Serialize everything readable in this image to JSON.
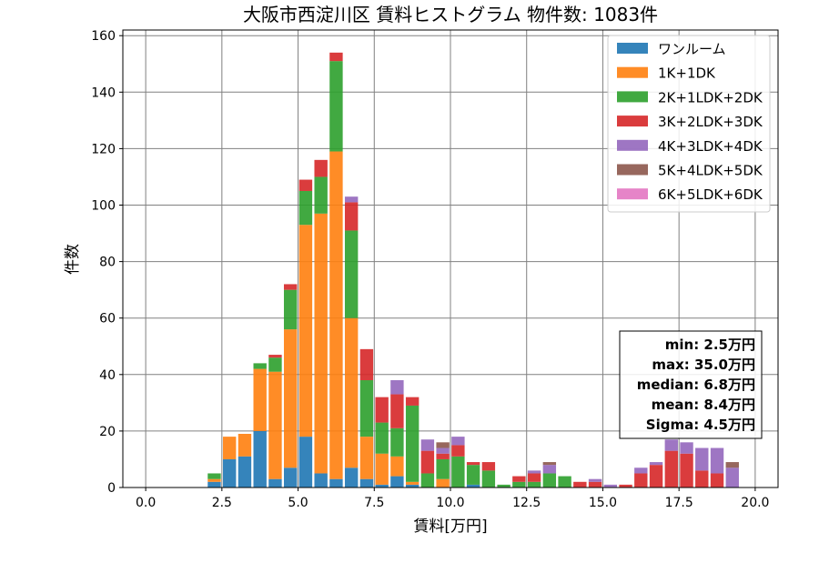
{
  "chart_data": {
    "type": "bar",
    "stacked": true,
    "title": "大阪市西淀川区 賃料ヒストグラム 物件数: 1083件",
    "xlabel": "賃料[万円]",
    "ylabel": "件数",
    "xlim": [
      -0.75,
      20.75
    ],
    "ylim": [
      0,
      162
    ],
    "xticks": [
      "0.0",
      "2.5",
      "5.0",
      "7.5",
      "10.0",
      "12.5",
      "15.0",
      "17.5",
      "20.0"
    ],
    "yticks": [
      "0",
      "20",
      "40",
      "60",
      "80",
      "100",
      "120",
      "140",
      "160"
    ],
    "grid": true,
    "legend_position": "top-right",
    "bin_width": 0.5,
    "x": [
      2.25,
      2.75,
      3.25,
      3.75,
      4.25,
      4.75,
      5.25,
      5.75,
      6.25,
      6.75,
      7.25,
      7.75,
      8.25,
      8.75,
      9.25,
      9.75,
      10.25,
      10.75,
      11.25,
      11.75,
      12.25,
      12.75,
      13.25,
      13.75,
      14.25,
      14.75,
      15.25,
      15.75,
      16.25,
      16.75,
      17.25,
      17.75,
      18.25,
      18.75,
      19.25
    ],
    "series": [
      {
        "name": "ワンルーム",
        "color": "#1f77b4",
        "values": [
          2,
          10,
          11,
          20,
          3,
          7,
          18,
          5,
          3,
          7,
          3,
          1,
          4,
          1,
          0,
          0,
          0,
          1,
          0,
          0,
          0,
          0,
          0,
          0,
          0,
          0,
          0,
          0,
          0,
          0,
          0,
          0,
          0,
          0,
          0
        ]
      },
      {
        "name": "1K+1DK",
        "color": "#ff7f0e",
        "values": [
          1,
          8,
          8,
          22,
          38,
          49,
          75,
          92,
          116,
          53,
          15,
          11,
          7,
          1,
          0,
          3,
          0,
          0,
          0,
          0,
          0,
          0,
          0,
          0,
          0,
          0,
          0,
          0,
          0,
          0,
          0,
          0,
          0,
          0,
          0
        ]
      },
      {
        "name": "2K+1LDK+2DK",
        "color": "#2ca02c",
        "values": [
          2,
          0,
          0,
          2,
          5,
          14,
          12,
          13,
          32,
          31,
          20,
          11,
          10,
          27,
          5,
          7,
          11,
          7,
          6,
          1,
          2,
          2,
          5,
          4,
          0,
          0,
          0,
          0,
          0,
          0,
          0,
          0,
          0,
          0,
          0
        ]
      },
      {
        "name": "3K+2LDK+3DK",
        "color": "#d62728",
        "values": [
          0,
          0,
          0,
          0,
          1,
          2,
          4,
          6,
          3,
          10,
          11,
          9,
          12,
          3,
          8,
          2,
          4,
          1,
          3,
          0,
          2,
          3,
          0,
          0,
          2,
          2,
          0,
          1,
          5,
          8,
          13,
          12,
          6,
          5,
          0
        ]
      },
      {
        "name": "4K+3LDK+4DK",
        "color": "#9467bd",
        "values": [
          0,
          0,
          0,
          0,
          0,
          0,
          0,
          0,
          0,
          2,
          0,
          0,
          5,
          0,
          4,
          2,
          3,
          0,
          0,
          0,
          0,
          1,
          3,
          0,
          0,
          1,
          1,
          0,
          2,
          1,
          4,
          4,
          8,
          9,
          7
        ]
      },
      {
        "name": "5K+4LDK+5DK",
        "color": "#8c564b",
        "values": [
          0,
          0,
          0,
          0,
          0,
          0,
          0,
          0,
          0,
          0,
          0,
          0,
          0,
          0,
          0,
          2,
          0,
          0,
          0,
          0,
          0,
          0,
          1,
          0,
          0,
          0,
          0,
          0,
          0,
          0,
          0,
          0,
          0,
          0,
          2
        ]
      },
      {
        "name": "6K+5LDK+6DK",
        "color": "#e377c2",
        "values": [
          0,
          0,
          0,
          0,
          0,
          0,
          0,
          0,
          0,
          0,
          0,
          0,
          0,
          0,
          0,
          0,
          0,
          0,
          0,
          0,
          0,
          0,
          0,
          0,
          0,
          0,
          0,
          0,
          0,
          0,
          0,
          0,
          0,
          0,
          0
        ]
      }
    ],
    "annotations": [
      "min: 2.5万円",
      "max: 35.0万円",
      "median: 6.8万円",
      "mean: 8.4万円",
      "Sigma: 4.5万円"
    ]
  }
}
